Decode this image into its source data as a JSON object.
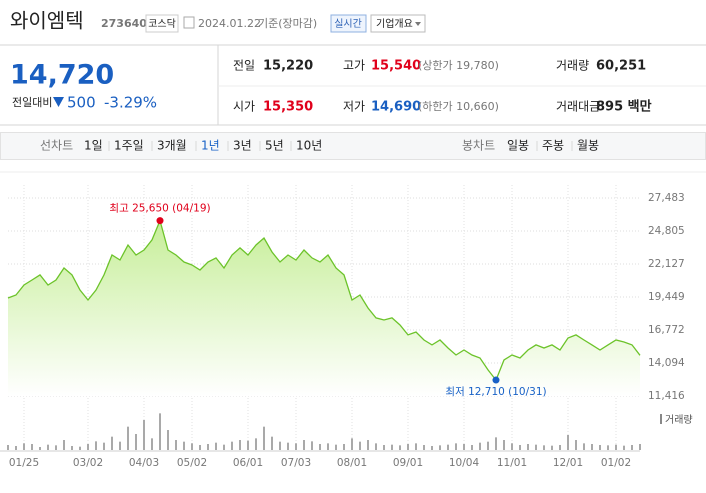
{
  "header": {
    "name": "와이엠텍",
    "code": "273640",
    "market": "코스닥",
    "date": "2024.01.22",
    "basis": "기준(장마감)",
    "realtime": "실시간",
    "company": "기업개요"
  },
  "quote": {
    "price": "14,720",
    "change_label": "전일대비",
    "change": "500",
    "change_rate": "-3.29%",
    "rows": [
      [
        {
          "label": "전일",
          "value": "15,220"
        },
        {
          "label": "고가",
          "value": "15,540",
          "limit": "(상한가 19,780)"
        },
        {
          "label": "거래량",
          "value": "60,251"
        }
      ],
      [
        {
          "label": "시가",
          "value": "15,350"
        },
        {
          "label": "저가",
          "value": "14,690",
          "limit": "(하한가 10,660)"
        },
        {
          "label": "거래대금",
          "value": "895 백만"
        }
      ]
    ]
  },
  "tabs": {
    "line_label": "선차트",
    "line_tabs": [
      "1일",
      "1주일",
      "3개월",
      "1년",
      "3년",
      "5년",
      "10년"
    ],
    "active": 3,
    "candle_label": "봉차트",
    "candle_tabs": [
      "일봉",
      "주봉",
      "월봉"
    ]
  },
  "chart_data": {
    "type": "area",
    "color": "#6cc32a",
    "grid": true,
    "values": [
      19370,
      19610,
      20420,
      20830,
      21240,
      20420,
      20830,
      21800,
      21240,
      20020,
      19210,
      20020,
      21240,
      22860,
      22450,
      23670,
      22860,
      23260,
      24080,
      25650,
      23260,
      22860,
      22290,
      22050,
      21640,
      22290,
      22620,
      21800,
      22860,
      23430,
      22860,
      23670,
      24240,
      23100,
      22290,
      22860,
      22450,
      23260,
      22620,
      22290,
      22860,
      21800,
      21240,
      19210,
      19610,
      18560,
      17750,
      17580,
      17750,
      17180,
      16370,
      16610,
      15960,
      15560,
      15960,
      15310,
      14740,
      15150,
      14740,
      14500,
      13530,
      12710,
      14340,
      14740,
      14500,
      15150,
      15560,
      15310,
      15560,
      15150,
      16120,
      16370,
      15960,
      15560,
      15150,
      15560,
      15960,
      15800,
      15560,
      14720
    ],
    "ylim": [
      11416,
      27483
    ],
    "yticks": [
      {
        "value": 11416,
        "label": "11,416"
      },
      {
        "value": 14094,
        "label": "14,094"
      },
      {
        "value": 16772,
        "label": "16,772"
      },
      {
        "value": 19449,
        "label": "19,449"
      },
      {
        "value": 22127,
        "label": "22,127"
      },
      {
        "value": 24805,
        "label": "24,805"
      },
      {
        "value": 27483,
        "label": "27,483"
      }
    ],
    "xticks": [
      {
        "value": 2,
        "label": "01/25"
      },
      {
        "value": 10,
        "label": "03/02"
      },
      {
        "value": 17,
        "label": "04/03"
      },
      {
        "value": 23,
        "label": "05/02"
      },
      {
        "value": 30,
        "label": "06/01"
      },
      {
        "value": 36,
        "label": "07/03"
      },
      {
        "value": 43,
        "label": "08/01"
      },
      {
        "value": 50,
        "label": "09/01"
      },
      {
        "value": 57,
        "label": "10/04"
      },
      {
        "value": 63,
        "label": "11/01"
      },
      {
        "value": 70,
        "label": "12/01"
      },
      {
        "value": 76,
        "label": "01/02"
      }
    ],
    "high": {
      "label": "최고 25,650 (04/19)",
      "color": "#e0001b"
    },
    "low": {
      "label": "최저 12,710 (10/31)",
      "color": "#1861c6"
    },
    "volume": {
      "label": "거래량",
      "color": "#a9a9a9",
      "ylim": [
        0,
        1200000
      ],
      "values": [
        150000,
        120000,
        200000,
        180000,
        90000,
        160000,
        140000,
        300000,
        120000,
        100000,
        180000,
        260000,
        220000,
        400000,
        250000,
        700000,
        480000,
        900000,
        350000,
        1100000,
        600000,
        300000,
        250000,
        200000,
        150000,
        180000,
        220000,
        160000,
        250000,
        300000,
        280000,
        350000,
        700000,
        400000,
        250000,
        220000,
        200000,
        300000,
        260000,
        180000,
        200000,
        160000,
        180000,
        350000,
        250000,
        300000,
        200000,
        150000,
        160000,
        140000,
        180000,
        200000,
        150000,
        120000,
        140000,
        160000,
        200000,
        180000,
        150000,
        220000,
        250000,
        380000,
        300000,
        200000,
        150000,
        180000,
        160000,
        140000,
        130000,
        150000,
        450000,
        300000,
        200000,
        180000,
        150000,
        140000,
        160000,
        130000,
        150000,
        180000
      ]
    }
  }
}
